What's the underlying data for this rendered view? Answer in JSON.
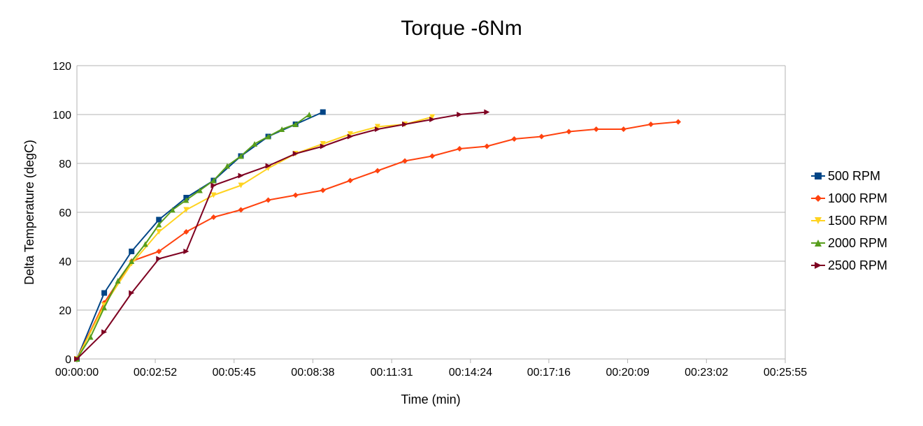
{
  "chart_data": {
    "type": "line",
    "title": "Torque -6Nm",
    "xlabel": "Time (min)",
    "ylabel": "Delta Temperature (degC)",
    "x_unit": "seconds",
    "xlim": [
      0,
      1555
    ],
    "ylim": [
      0,
      120
    ],
    "y_ticks": [
      0,
      20,
      40,
      60,
      80,
      100,
      120
    ],
    "x_ticks": [
      0,
      172,
      345,
      518,
      691,
      864,
      1036,
      1209,
      1382,
      1555
    ],
    "x_tick_labels": [
      "00:00:00",
      "00:02:52",
      "00:05:45",
      "00:08:38",
      "00:11:31",
      "00:14:24",
      "00:17:16",
      "00:20:09",
      "00:23:02",
      "00:25:55"
    ],
    "grid": true,
    "legend_position": "right",
    "series": [
      {
        "name": "500 RPM",
        "color": "#004586",
        "marker": "square",
        "x": [
          0,
          60,
          120,
          180,
          240,
          300,
          360,
          420,
          480,
          540
        ],
        "y": [
          0,
          27,
          44,
          57,
          66,
          73,
          83,
          91,
          96,
          101
        ]
      },
      {
        "name": "1000 RPM",
        "color": "#ff420e",
        "marker": "diamond",
        "x": [
          0,
          60,
          120,
          180,
          240,
          300,
          360,
          420,
          480,
          540,
          600,
          660,
          720,
          780,
          840,
          900,
          960,
          1020,
          1080,
          1140,
          1200,
          1260,
          1320
        ],
        "y": [
          0,
          23,
          40,
          44,
          52,
          58,
          61,
          65,
          67,
          69,
          73,
          77,
          81,
          83,
          86,
          87,
          90,
          91,
          93,
          94,
          94,
          96,
          97
        ]
      },
      {
        "name": "1500 RPM",
        "color": "#ffd320",
        "marker": "triangle-down",
        "x": [
          0,
          60,
          120,
          180,
          240,
          300,
          360,
          420,
          480,
          540,
          600,
          660,
          720,
          780
        ],
        "y": [
          0,
          22,
          39,
          52,
          61,
          67,
          71,
          78,
          84,
          88,
          92,
          95,
          96,
          99
        ]
      },
      {
        "name": "2000 RPM",
        "color": "#579d1c",
        "marker": "triangle-up",
        "x": [
          0,
          30,
          60,
          90,
          120,
          150,
          180,
          210,
          240,
          270,
          300,
          330,
          360,
          390,
          420,
          450,
          480,
          510
        ],
        "y": [
          0,
          9,
          21,
          32,
          40,
          47,
          55,
          61,
          65,
          69,
          73,
          79,
          83,
          88,
          91,
          94,
          96,
          100
        ]
      },
      {
        "name": "2500 RPM",
        "color": "#7e0021",
        "marker": "triangle-right",
        "x": [
          0,
          60,
          120,
          180,
          240,
          300,
          360,
          420,
          480,
          540,
          600,
          660,
          720,
          780,
          840,
          900
        ],
        "y": [
          0,
          11,
          27,
          41,
          44,
          71,
          75,
          79,
          84,
          87,
          91,
          94,
          96,
          98,
          100,
          101
        ]
      }
    ]
  }
}
